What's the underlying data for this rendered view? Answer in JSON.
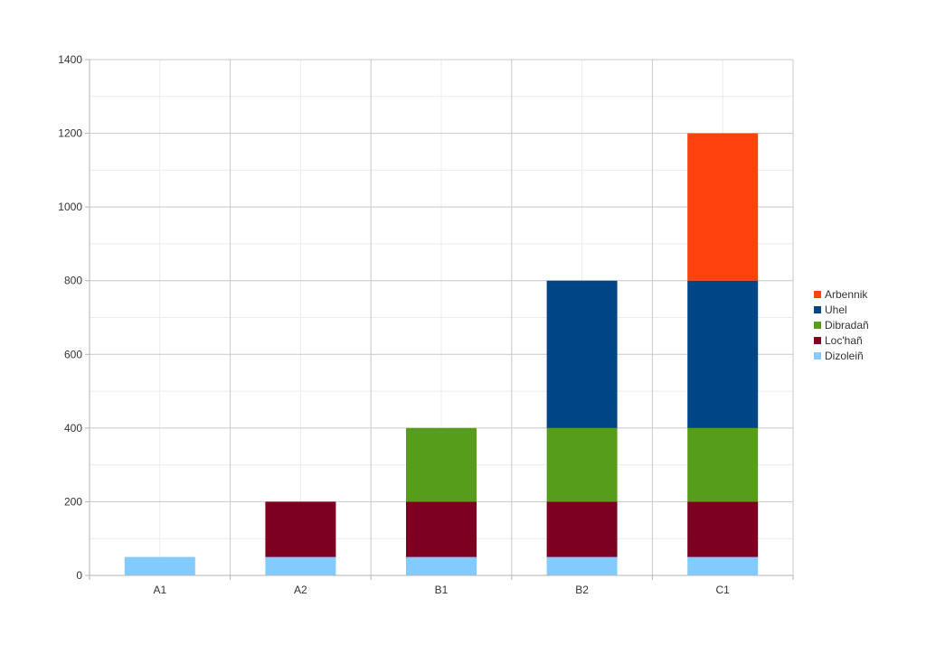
{
  "chart_data": {
    "type": "bar",
    "stacked": true,
    "title": "",
    "xlabel": "",
    "ylabel": "",
    "categories": [
      "A1",
      "A2",
      "B1",
      "B2",
      "C1"
    ],
    "ylim": [
      0,
      1400
    ],
    "yticks": [
      0,
      200,
      400,
      600,
      800,
      1000,
      1200,
      1400
    ],
    "grid": true,
    "legend_position": "right",
    "series": [
      {
        "name": "Dizoleiñ",
        "color": "#83caff",
        "values": [
          50,
          50,
          50,
          50,
          50
        ]
      },
      {
        "name": "Loc'hañ",
        "color": "#7e0021",
        "values": [
          0,
          150,
          150,
          150,
          150
        ]
      },
      {
        "name": "Dibradañ",
        "color": "#579d1c",
        "values": [
          0,
          0,
          200,
          200,
          200
        ]
      },
      {
        "name": "Uhel",
        "color": "#004586",
        "values": [
          0,
          0,
          0,
          400,
          400
        ]
      },
      {
        "name": "Arbennik",
        "color": "#ff420e",
        "values": [
          0,
          0,
          0,
          0,
          400
        ]
      }
    ],
    "legend_order": [
      "Arbennik",
      "Uhel",
      "Dibradañ",
      "Loc'hañ",
      "Dizoleiñ"
    ]
  }
}
